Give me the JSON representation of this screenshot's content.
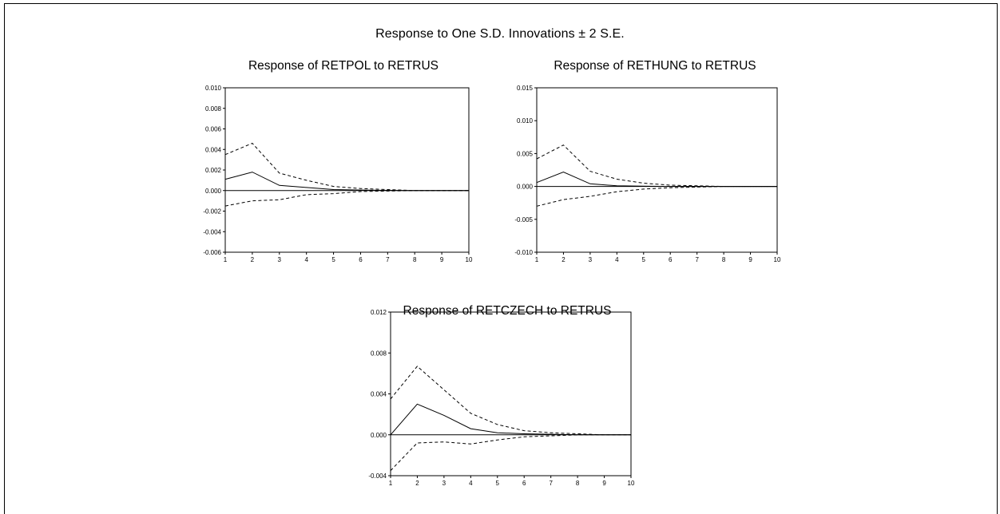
{
  "figure": {
    "title": "Response to One S.D. Innovations ± 2 S.E."
  },
  "colors": {
    "line": "#000000",
    "background": "#ffffff"
  },
  "chart_data": [
    {
      "type": "line",
      "title": "Response of RETPOL to RETRUS",
      "xlabel": "",
      "ylabel": "",
      "x": [
        1,
        2,
        3,
        4,
        5,
        6,
        7,
        8,
        9,
        10
      ],
      "xlim": [
        1,
        10
      ],
      "ylim": [
        -0.006,
        0.01
      ],
      "yticks": [
        -0.006,
        -0.004,
        -0.002,
        0.0,
        0.002,
        0.004,
        0.006,
        0.008,
        0.01
      ],
      "ytick_labels": [
        "-0.006",
        "-0.004",
        "-0.002",
        "0.000",
        "0.002",
        "0.004",
        "0.006",
        "0.008",
        "0.010"
      ],
      "xtick_labels": [
        "1",
        "2",
        "3",
        "4",
        "5",
        "6",
        "7",
        "8",
        "9",
        "10"
      ],
      "grid": false,
      "series": [
        {
          "role": "response",
          "style": "solid",
          "values": [
            0.0011,
            0.0018,
            0.0005,
            0.0003,
            0.0001,
            5e-05,
            2e-05,
            0.0,
            0.0,
            0.0
          ]
        },
        {
          "role": "upper",
          "style": "dashed",
          "values": [
            0.0035,
            0.0046,
            0.0017,
            0.001,
            0.0004,
            0.0002,
            0.0001,
            0.0,
            0.0,
            0.0
          ]
        },
        {
          "role": "lower",
          "style": "dashed",
          "values": [
            -0.0015,
            -0.001,
            -0.0009,
            -0.0004,
            -0.0003,
            -0.0001,
            -5e-05,
            0.0,
            0.0,
            0.0
          ]
        }
      ]
    },
    {
      "type": "line",
      "title": "Response of RETHUNG to RETRUS",
      "xlabel": "",
      "ylabel": "",
      "x": [
        1,
        2,
        3,
        4,
        5,
        6,
        7,
        8,
        9,
        10
      ],
      "xlim": [
        1,
        10
      ],
      "ylim": [
        -0.01,
        0.015
      ],
      "yticks": [
        -0.01,
        -0.005,
        0.0,
        0.005,
        0.01,
        0.015
      ],
      "ytick_labels": [
        "-0.010",
        "-0.005",
        "0.000",
        "0.005",
        "0.010",
        "0.015"
      ],
      "xtick_labels": [
        "1",
        "2",
        "3",
        "4",
        "5",
        "6",
        "7",
        "8",
        "9",
        "10"
      ],
      "grid": false,
      "series": [
        {
          "role": "response",
          "style": "solid",
          "values": [
            0.0006,
            0.0022,
            0.0004,
            0.0001,
            5e-05,
            0.0,
            0.0,
            0.0,
            0.0,
            0.0
          ]
        },
        {
          "role": "upper",
          "style": "dashed",
          "values": [
            0.0042,
            0.0063,
            0.0023,
            0.0011,
            0.0005,
            0.0002,
            0.0001,
            0.0,
            0.0,
            0.0
          ]
        },
        {
          "role": "lower",
          "style": "dashed",
          "values": [
            -0.003,
            -0.002,
            -0.0015,
            -0.0008,
            -0.0004,
            -0.0002,
            -0.0001,
            0.0,
            0.0,
            0.0
          ]
        }
      ]
    },
    {
      "type": "line",
      "title": "Response of RETCZECH to RETRUS",
      "xlabel": "",
      "ylabel": "",
      "x": [
        1,
        2,
        3,
        4,
        5,
        6,
        7,
        8,
        9,
        10
      ],
      "xlim": [
        1,
        10
      ],
      "ylim": [
        -0.004,
        0.012
      ],
      "yticks": [
        -0.004,
        0.0,
        0.004,
        0.008,
        0.012
      ],
      "ytick_labels": [
        "-0.004",
        "0.000",
        "0.004",
        "0.008",
        "0.012"
      ],
      "xtick_labels": [
        "1",
        "2",
        "3",
        "4",
        "5",
        "6",
        "7",
        "8",
        "9",
        "10"
      ],
      "grid": false,
      "series": [
        {
          "role": "response",
          "style": "solid",
          "values": [
            0.0,
            0.003,
            0.0019,
            0.0006,
            0.0002,
            0.0001,
            5e-05,
            0.0,
            0.0,
            0.0
          ]
        },
        {
          "role": "upper",
          "style": "dashed",
          "values": [
            0.0035,
            0.0067,
            0.0044,
            0.0021,
            0.001,
            0.0004,
            0.0002,
            0.0001,
            0.0,
            0.0
          ]
        },
        {
          "role": "lower",
          "style": "dashed",
          "values": [
            -0.0035,
            -0.0008,
            -0.0007,
            -0.0009,
            -0.0005,
            -0.0002,
            -0.0001,
            0.0,
            0.0,
            0.0
          ]
        }
      ]
    }
  ]
}
